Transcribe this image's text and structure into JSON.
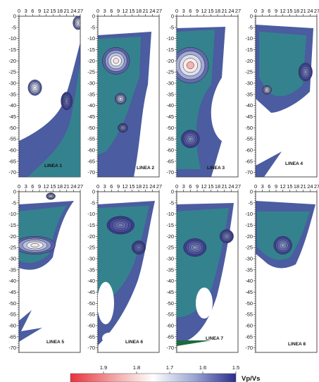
{
  "chart_data": {
    "type": "heatmap",
    "colorbar": {
      "title": "Vp/Vs",
      "range": [
        1.5,
        2.0
      ],
      "ticks": [
        "1.9",
        "1.8",
        "1.7",
        "1.6",
        "1.5"
      ],
      "colors": [
        "#e8323c",
        "#f0a0a0",
        "#ffffff",
        "#9aa5d2",
        "#2a2e8c"
      ]
    },
    "x_ticks": [
      "0",
      "3",
      "6",
      "9",
      "12",
      "15",
      "18",
      "21",
      "24",
      "27"
    ],
    "y_ticks": [
      "0",
      "-5",
      "-10",
      "-15",
      "-20",
      "-25",
      "-30",
      "-35",
      "-40",
      "-45",
      "-50",
      "-55",
      "-60",
      "-65",
      "-70"
    ],
    "xlim": [
      0,
      27
    ],
    "ylim": [
      -72,
      0
    ],
    "panels": [
      {
        "name": "LINEA 1",
        "anomalies": [
          {
            "x": 26,
            "y": -3,
            "rx": 2.2,
            "ry": 3,
            "peak": 1.82
          },
          {
            "x": 7,
            "y": -32,
            "rx": 3,
            "ry": 3.5,
            "peak": 1.83
          },
          {
            "x": 21,
            "y": -38,
            "rx": 2.5,
            "ry": 4,
            "peak": 1.6
          }
        ]
      },
      {
        "name": "LINEA 2",
        "anomalies": [
          {
            "x": 8,
            "y": -20,
            "rx": 6,
            "ry": 6,
            "peak": 1.85
          },
          {
            "x": 10,
            "y": -37,
            "rx": 2.5,
            "ry": 2.5,
            "peak": 1.78
          },
          {
            "x": 11,
            "y": -50,
            "rx": 2.2,
            "ry": 2,
            "peak": 1.65
          }
        ]
      },
      {
        "name": "LINEA 3",
        "anomalies": [
          {
            "x": 6,
            "y": -22,
            "rx": 8,
            "ry": 8,
            "peak": 1.92
          },
          {
            "x": 6,
            "y": -55,
            "rx": 4,
            "ry": 4,
            "peak": 1.62
          }
        ]
      },
      {
        "name": "LINEA 4",
        "anomalies": [
          {
            "x": 22,
            "y": -25,
            "rx": 3,
            "ry": 4,
            "peak": 1.62
          },
          {
            "x": 5,
            "y": -33,
            "rx": 2,
            "ry": 2,
            "peak": 1.82
          }
        ]
      },
      {
        "name": "LINEA 5",
        "anomalies": [
          {
            "x": 7,
            "y": -24,
            "rx": 9,
            "ry": 4,
            "peak": 1.84
          },
          {
            "x": 14,
            "y": -2,
            "rx": 2,
            "ry": 1.5,
            "peak": 1.78
          }
        ]
      },
      {
        "name": "LINEA 6",
        "anomalies": [
          {
            "x": 10,
            "y": -15,
            "rx": 6,
            "ry": 4,
            "peak": 1.6
          },
          {
            "x": 18,
            "y": -25,
            "rx": 3,
            "ry": 3,
            "peak": 1.6
          }
        ]
      },
      {
        "name": "LINEA 7",
        "anomalies": [
          {
            "x": 8,
            "y": -25,
            "rx": 5,
            "ry": 4,
            "peak": 1.62
          },
          {
            "x": 22,
            "y": -20,
            "rx": 3,
            "ry": 3,
            "peak": 1.62
          }
        ]
      },
      {
        "name": "LINEA 8",
        "anomalies": [
          {
            "x": 12,
            "y": -24,
            "rx": 4,
            "ry": 4,
            "peak": 1.64
          }
        ]
      }
    ]
  }
}
